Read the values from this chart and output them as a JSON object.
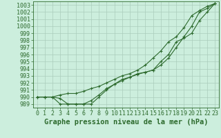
{
  "title": "Graphe pression niveau de la mer (hPa)",
  "xlim": [
    -0.5,
    23.5
  ],
  "ylim": [
    988.5,
    1003.5
  ],
  "yticks": [
    989,
    990,
    991,
    992,
    993,
    994,
    995,
    996,
    997,
    998,
    999,
    1000,
    1001,
    1002,
    1003
  ],
  "xticks": [
    0,
    1,
    2,
    3,
    4,
    5,
    6,
    7,
    8,
    9,
    10,
    11,
    12,
    13,
    14,
    15,
    16,
    17,
    18,
    19,
    20,
    21,
    22,
    23
  ],
  "line_color": "#2d6a2d",
  "bg_color": "#cceedd",
  "grid_color": "#aaccbb",
  "line1": [
    990.0,
    990.0,
    990.0,
    989.8,
    989.0,
    989.0,
    989.0,
    989.5,
    990.3,
    991.2,
    991.8,
    992.5,
    992.8,
    993.2,
    993.5,
    993.8,
    994.5,
    995.5,
    997.0,
    998.5,
    1000.0,
    1002.0,
    1002.5,
    1003.2
  ],
  "line2": [
    990.0,
    990.0,
    990.0,
    989.0,
    989.0,
    989.0,
    989.0,
    989.0,
    990.0,
    991.0,
    991.8,
    992.3,
    992.8,
    993.3,
    993.5,
    993.8,
    995.0,
    996.0,
    997.8,
    998.3,
    999.0,
    1000.8,
    1002.0,
    1003.2
  ],
  "line3": [
    990.0,
    990.0,
    990.0,
    990.3,
    990.5,
    990.5,
    990.8,
    991.2,
    991.5,
    992.0,
    992.5,
    993.0,
    993.3,
    993.8,
    994.5,
    995.5,
    996.5,
    997.8,
    998.5,
    999.8,
    1001.5,
    1002.2,
    1002.8,
    1003.2
  ],
  "title_fontsize": 7.5,
  "tick_fontsize": 6,
  "line_width": 0.8,
  "marker_size": 2.5
}
